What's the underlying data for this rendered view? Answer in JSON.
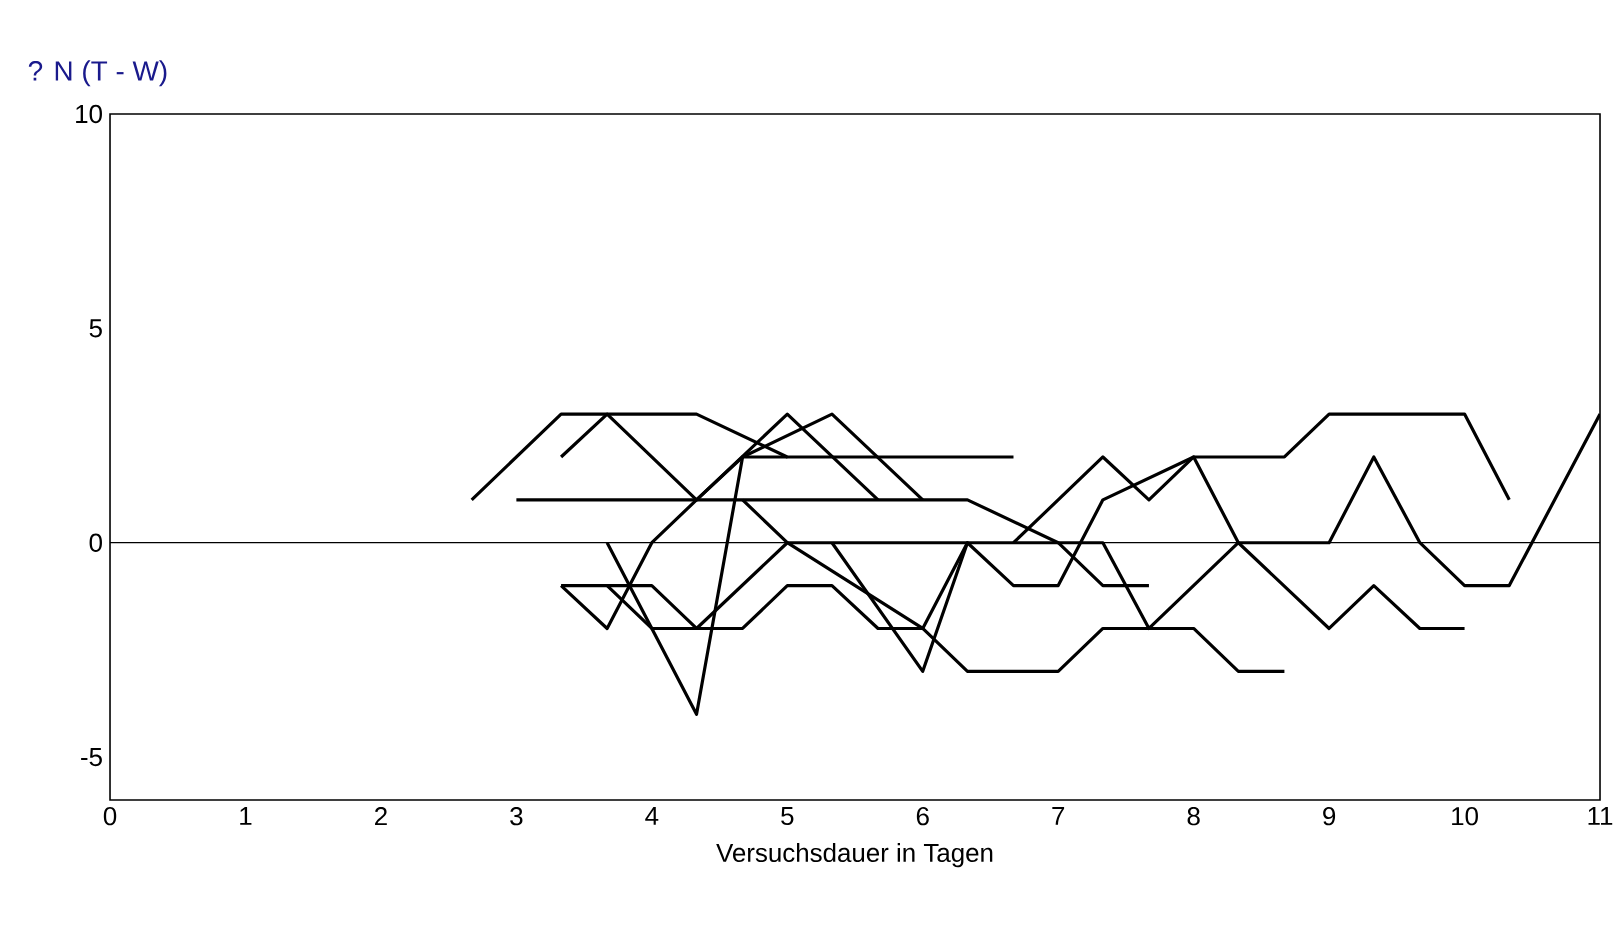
{
  "chart_data": {
    "type": "line",
    "xlabel": "Versuchsdauer in Tagen",
    "ylabel": "? N (T - W)",
    "xlim": [
      0,
      11
    ],
    "ylim": [
      -6,
      10
    ],
    "xticks": [
      0,
      1,
      2,
      3,
      4,
      5,
      6,
      7,
      8,
      9,
      10,
      11
    ],
    "yticks": [
      -5,
      0,
      5,
      10
    ],
    "ref_lines": [
      {
        "axis": "y",
        "value": 0,
        "color": "#000000"
      }
    ],
    "marker": "none",
    "line_style": "solid",
    "series": [
      {
        "color": "#000000",
        "x": [
          2.67,
          3.33,
          4.33,
          5,
          6.67
        ],
        "values": [
          1,
          3,
          3,
          2,
          2
        ]
      },
      {
        "color": "#000000",
        "x": [
          3.33,
          3.67,
          4.33,
          4.67,
          5.33,
          6
        ],
        "values": [
          2,
          3,
          1,
          2,
          3,
          1
        ]
      },
      {
        "color": "#000000",
        "x": [
          3,
          6.33,
          7,
          7.33,
          7.67,
          8.33,
          9,
          9.33,
          9.67,
          10
        ],
        "values": [
          1,
          1,
          0,
          0,
          -2,
          0,
          -2,
          -1,
          -2,
          -2
        ]
      },
      {
        "color": "#000000",
        "x": [
          4.67,
          5,
          7,
          7.33,
          7.67
        ],
        "values": [
          1,
          0,
          0,
          -1,
          -1
        ]
      },
      {
        "color": "#000000",
        "x": [
          3.33,
          4,
          4.33,
          4.67,
          5,
          5.33,
          5.67,
          6,
          6.33,
          7,
          7.33,
          8,
          8.33,
          8.67
        ],
        "values": [
          -1,
          -1,
          -2,
          -2,
          -1,
          -1,
          -2,
          -2,
          -3,
          -3,
          -2,
          -2,
          -3,
          -3
        ]
      },
      {
        "color": "#000000",
        "x": [
          3.33,
          3.67,
          4,
          4.33,
          5,
          5.67
        ],
        "values": [
          -1,
          -2,
          0,
          1,
          3,
          1
        ]
      },
      {
        "color": "#000000",
        "x": [
          3.67,
          4.33,
          4.67,
          5
        ],
        "values": [
          0,
          -4,
          2,
          2
        ]
      },
      {
        "color": "#000000",
        "x": [
          3.67,
          4,
          4.33,
          5,
          6,
          6.33
        ],
        "values": [
          -1,
          -2,
          -2,
          0,
          -2,
          0
        ]
      },
      {
        "color": "#000000",
        "x": [
          6.67,
          7.33,
          7.67,
          8,
          8.67,
          9,
          10,
          10.33
        ],
        "values": [
          0,
          2,
          1,
          2,
          2,
          3,
          3,
          1
        ]
      },
      {
        "color": "#000000",
        "x": [
          5.33,
          6,
          6.33,
          6.67,
          7,
          7.33,
          8,
          8.33,
          9,
          9.33,
          9.67,
          10,
          10.33,
          11
        ],
        "values": [
          0,
          -3,
          0,
          -1,
          -1,
          1,
          2,
          0,
          0,
          2,
          0,
          -1,
          -1,
          3
        ]
      }
    ]
  }
}
